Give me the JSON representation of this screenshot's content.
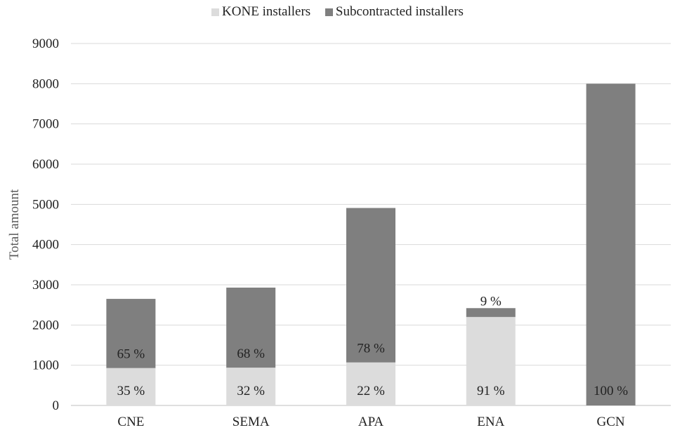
{
  "chart_data": {
    "type": "bar",
    "stacked": true,
    "categories": [
      "CNE",
      "SEMA",
      "APA",
      "ENA",
      "GCN"
    ],
    "series": [
      {
        "name": "KONE installers",
        "color": "#dcdcdc",
        "values": [
          930,
          940,
          1070,
          2200,
          0
        ],
        "labels": [
          "35 %",
          "32 %",
          "22 %",
          "91 %",
          ""
        ]
      },
      {
        "name": "Subcontracted installers",
        "color": "#7f7f7f",
        "values": [
          1720,
          1990,
          3840,
          220,
          8000
        ],
        "labels": [
          "65 %",
          "68 %",
          "78 %",
          "9 %",
          "100 %"
        ]
      }
    ],
    "ylabel": "Total amount",
    "xlabel": "",
    "ylim": [
      0,
      9000
    ],
    "yticks": [
      0,
      1000,
      2000,
      3000,
      4000,
      5000,
      6000,
      7000,
      8000,
      9000
    ],
    "grid": true,
    "legend_position": "top"
  }
}
